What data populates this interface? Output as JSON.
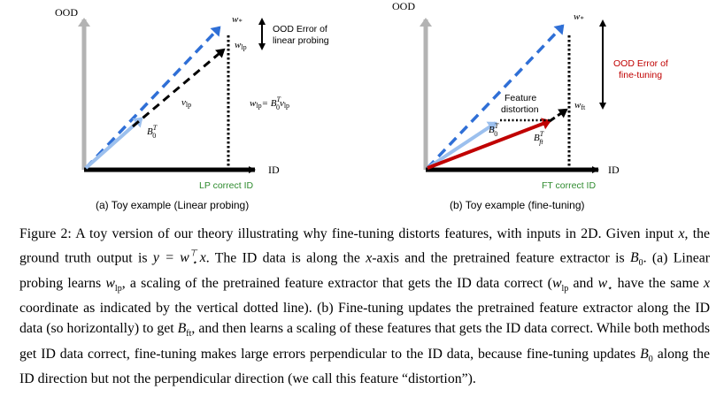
{
  "panel_a": {
    "axis_y": "OOD",
    "axis_x": "ID",
    "w_star": "w",
    "w_star_sub": "*",
    "w_lp": "w",
    "w_lp_sub": "lp",
    "v_lp": "v",
    "v_lp_sub": "lp",
    "b0": "B",
    "b0_sup": "T",
    "b0_sub": "0",
    "ood_error_line1": "OOD Error of",
    "ood_error_line2": "linear probing",
    "equation_lhs": "w",
    "equation_lhs_sub": "lp",
    "equation_mid": "= B",
    "equation_mid_sup": "T",
    "equation_mid_sub": "0",
    "equation_rhs": "v",
    "equation_rhs_sub": "lp",
    "correct_label": "LP correct ID",
    "title": "(a) Toy example (Linear probing)"
  },
  "panel_b": {
    "axis_y": "OOD",
    "axis_x": "ID",
    "w_star": "w",
    "w_star_sub": "*",
    "w_ft": "w",
    "w_ft_sub": "ft",
    "b0": "B",
    "b0_sup": "T",
    "b0_sub": "0",
    "bft": "B",
    "bft_sup": "T",
    "bft_sub": "ft",
    "feature_line1": "Feature",
    "feature_line2": "distortion",
    "ood_error_line1": "OOD Error of",
    "ood_error_line2": "fine-tuning",
    "correct_label": "FT correct ID",
    "title": "(b) Toy example (fine-tuning)"
  },
  "caption": {
    "p1": "Figure 2: A toy version of our theory illustrating why fine-tuning distorts features, with inputs in 2D. Given input ",
    "p2": ", the ground truth output is ",
    "p3": ". The ID data is along the ",
    "p4": "-axis and the pretrained feature extractor is ",
    "p5": ". (a) Linear probing learns ",
    "p6": ", a scaling of the pretrained feature extractor that gets the ID data correct (",
    "p7": " and ",
    "p8": " have the same ",
    "p9": " coordinate as indicated by the vertical dotted line). (b) Fine-tuning updates the pretrained feature extractor along the ID data (so horizontally) to get ",
    "p10": ", and then learns a scaling of these features that gets the ID data correct. While both methods get ID data correct, fine-tuning makes large errors perpendicular to the ID data, because fine-tuning updates ",
    "p11": " along the ID direction but not the perpendicular direction (we call this feature “distortion”).",
    "x": "x",
    "y_eq": "y = w",
    "y_sup": "⊤",
    "y_sub": "⋆",
    "y_tail": "x",
    "B0": "B",
    "B0_sub": "0",
    "wlp": "w",
    "wlp_sub": "lp",
    "wstar": "w",
    "wstar_sub": "⋆",
    "Bft": "B",
    "Bft_sub": "ft"
  },
  "colors": {
    "gray_axis": "#b3b3b3",
    "blue_dash": "#2f6fd6",
    "light_blue": "#9cc0ee",
    "red": "#c00000",
    "green": "#2e8b2e",
    "dark_red_text": "#c00000"
  }
}
